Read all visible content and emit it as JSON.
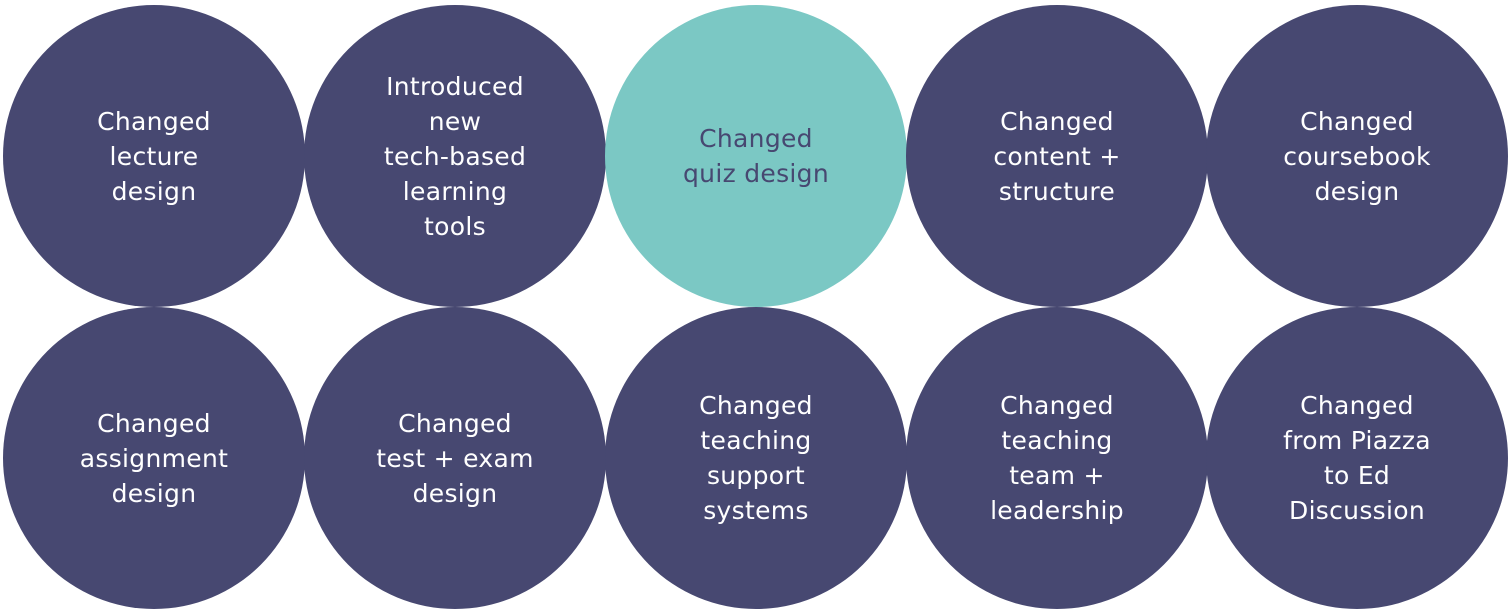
{
  "colors": {
    "dark_circle": "#474871",
    "highlight_circle": "#7bc8c4",
    "dark_text": "#ffffff",
    "highlight_text": "#474871"
  },
  "circles": [
    {
      "label": "Changed\nlecture\ndesign"
    },
    {
      "label": "Introduced\nnew\ntech-based\nlearning\ntools"
    },
    {
      "label": "Changed\nquiz design"
    },
    {
      "label": "Changed\ncontent +\nstructure"
    },
    {
      "label": "Changed\ncoursebook\ndesign"
    },
    {
      "label": "Changed\nassignment\ndesign"
    },
    {
      "label": "Changed\ntest + exam\ndesign"
    },
    {
      "label": "Changed\nteaching\nsupport\nsystems"
    },
    {
      "label": "Changed\nteaching\nteam +\nleadership"
    },
    {
      "label": "Changed\nfrom Piazza\nto Ed\nDiscussion"
    }
  ]
}
